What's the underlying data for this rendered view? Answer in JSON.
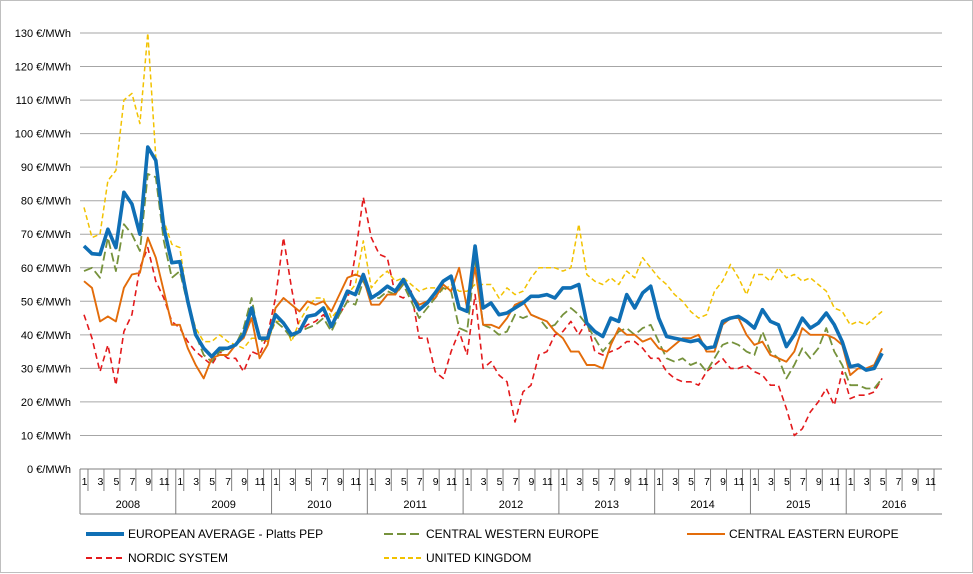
{
  "chart_data": {
    "type": "line",
    "y_unit": "€/MWh",
    "ylim": [
      0,
      130
    ],
    "y_ticks": [
      0,
      10,
      20,
      30,
      40,
      50,
      60,
      70,
      80,
      90,
      100,
      110,
      120,
      130
    ],
    "y_tick_labels": [
      "0 €/MWh",
      "10 €/MWh",
      "20 €/MWh",
      "30 €/MWh",
      "40 €/MWh",
      "50 €/MWh",
      "60 €/MWh",
      "70 €/MWh",
      "80 €/MWh",
      "90 €/MWh",
      "100 €/MWh",
      "110 €/MWh",
      "120 €/MWh",
      "130 €/MWh"
    ],
    "grid": "horizontal",
    "legend_position": "bottom",
    "x_month_labels": [
      "1",
      "3",
      "5",
      "7",
      "9",
      "11"
    ],
    "years": [
      "2008",
      "2009",
      "2010",
      "2011",
      "2012",
      "2013",
      "2014",
      "2015",
      "2016"
    ],
    "x_start": "2008-01",
    "x_end": "2016-06",
    "series": [
      {
        "name": "EUROPEAN AVERAGE - Platts PEP",
        "color": "#0f6fb5",
        "dash": "solid",
        "values": [
          66.5,
          64.2,
          64.0,
          71.5,
          66.0,
          82.5,
          79.0,
          70.0,
          96.0,
          92.0,
          72.0,
          61.5,
          61.8,
          50.0,
          40.0,
          36.0,
          33.5,
          36.0,
          36.0,
          37.0,
          40.0,
          48.0,
          39.0,
          39.0,
          46.0,
          43.5,
          40.0,
          41.0,
          45.5,
          46.0,
          48.0,
          42.5,
          47.5,
          53.0,
          52.0,
          58.0,
          51.0,
          52.5,
          54.5,
          53.0,
          56.5,
          52.0,
          47.5,
          49.5,
          52.5,
          56.0,
          57.5,
          48.0,
          47.0,
          66.5,
          48.0,
          49.5,
          46.0,
          46.5,
          48.0,
          49.5,
          51.5,
          51.5,
          52.0,
          51.0,
          54.0,
          54.0,
          55.0,
          43.5,
          41.0,
          39.5,
          45.0,
          44.0,
          52.0,
          48.0,
          52.5,
          54.5,
          45.0,
          39.5,
          39.0,
          38.5,
          38.0,
          38.5,
          36.0,
          36.5,
          44.0,
          45.0,
          45.5,
          44.0,
          42.0,
          47.5,
          44.0,
          43.0,
          36.5,
          40.0,
          45.0,
          42.0,
          43.5,
          46.5,
          43.0,
          38.0,
          30.5,
          31.0,
          29.5,
          30.0,
          34.5
        ]
      },
      {
        "name": "CENTRAL WESTERN EUROPE",
        "color": "#76923c",
        "dash": "long-dash",
        "values": [
          59.0,
          60.0,
          57.0,
          69.0,
          59.0,
          73.0,
          70.0,
          65.0,
          88.0,
          87.0,
          68.0,
          57.0,
          59.0,
          49.0,
          40.0,
          34.0,
          32.0,
          35.0,
          36.0,
          37.0,
          42.0,
          51.0,
          38.0,
          39.0,
          44.0,
          42.0,
          39.0,
          41.0,
          42.0,
          43.0,
          45.0,
          41.0,
          46.0,
          50.0,
          49.0,
          56.0,
          51.0,
          51.0,
          53.0,
          52.0,
          55.0,
          50.0,
          45.0,
          48.0,
          51.0,
          54.0,
          53.0,
          42.0,
          41.0,
          62.0,
          43.0,
          42.0,
          40.0,
          41.0,
          46.0,
          45.0,
          46.0,
          45.0,
          42.0,
          43.0,
          46.0,
          48.0,
          46.0,
          43.0,
          39.0,
          35.0,
          38.0,
          41.0,
          42.0,
          40.0,
          42.0,
          43.0,
          38.0,
          33.0,
          32.0,
          33.0,
          31.0,
          32.0,
          29.0,
          33.0,
          37.0,
          38.0,
          37.0,
          35.0,
          34.0,
          41.0,
          35.0,
          33.0,
          27.0,
          31.0,
          36.0,
          33.0,
          36.0,
          42.0,
          35.0,
          31.0,
          25.0,
          25.0,
          24.0,
          24.0,
          27.0
        ]
      },
      {
        "name": "CENTRAL EASTERN EUROPE",
        "color": "#e36c0a",
        "dash": "solid",
        "values": [
          56.0,
          54.0,
          44.0,
          45.5,
          44.0,
          54.0,
          58.0,
          58.5,
          69.0,
          63.0,
          53.0,
          43.0,
          43.0,
          36.0,
          31.0,
          27.0,
          33.0,
          34.0,
          34.0,
          37.0,
          39.0,
          45.0,
          33.0,
          37.0,
          48.0,
          51.0,
          49.0,
          47.0,
          50.0,
          49.0,
          50.0,
          47.0,
          52.0,
          57.0,
          58.0,
          57.0,
          49.0,
          49.0,
          52.0,
          52.0,
          56.0,
          52.0,
          49.0,
          50.0,
          51.0,
          55.0,
          53.0,
          60.0,
          48.0,
          60.0,
          43.0,
          43.0,
          42.0,
          45.0,
          49.0,
          50.0,
          46.0,
          45.0,
          44.0,
          41.0,
          39.0,
          35.0,
          35.0,
          31.0,
          31.0,
          30.0,
          37.0,
          42.0,
          40.0,
          40.0,
          38.0,
          39.0,
          36.0,
          35.0,
          37.0,
          39.0,
          39.0,
          40.0,
          35.0,
          35.0,
          43.0,
          45.0,
          45.0,
          40.0,
          37.0,
          38.0,
          34.0,
          33.0,
          32.0,
          35.0,
          42.0,
          40.0,
          40.0,
          40.0,
          39.0,
          37.0,
          28.0,
          30.0,
          30.0,
          31.0,
          36.0
        ]
      },
      {
        "name": "NORDIC SYSTEM",
        "color": "#e31a1c",
        "dash": "short-dash",
        "values": [
          46.0,
          39.0,
          29.0,
          37.0,
          25.0,
          41.0,
          46.0,
          60.0,
          66.0,
          56.0,
          51.0,
          44.0,
          42.0,
          38.0,
          35.0,
          33.0,
          31.0,
          35.0,
          33.0,
          33.0,
          29.0,
          35.0,
          34.0,
          40.0,
          51.0,
          69.0,
          54.0,
          41.0,
          43.0,
          44.0,
          46.0,
          43.0,
          46.0,
          50.0,
          64.0,
          81.0,
          69.0,
          64.0,
          63.0,
          52.0,
          51.0,
          53.0,
          39.0,
          39.0,
          29.0,
          27.0,
          35.0,
          41.0,
          34.0,
          52.0,
          30.0,
          32.0,
          28.0,
          26.0,
          14.0,
          23.0,
          25.0,
          34.0,
          35.0,
          40.0,
          41.0,
          44.0,
          40.0,
          44.0,
          35.0,
          34.0,
          35.0,
          36.0,
          38.0,
          38.0,
          36.0,
          33.0,
          33.0,
          29.0,
          27.0,
          26.0,
          26.0,
          25.0,
          29.0,
          31.0,
          33.0,
          30.0,
          30.0,
          31.0,
          29.0,
          28.0,
          25.0,
          25.0,
          18.0,
          10.0,
          12.0,
          17.0,
          20.0,
          24.0,
          19.0,
          29.0,
          21.0,
          22.0,
          22.0,
          23.0,
          27.0
        ]
      },
      {
        "name": "UNITED KINGDOM",
        "color": "#f2c200",
        "dash": "dash",
        "values": [
          78.0,
          69.0,
          70.0,
          86.0,
          89.0,
          110.0,
          112.0,
          103.0,
          130.0,
          93.0,
          74.0,
          67.0,
          66.0,
          50.0,
          42.0,
          38.0,
          38.0,
          40.0,
          38.0,
          37.0,
          36.0,
          39.0,
          39.0,
          38.0,
          44.0,
          44.0,
          38.0,
          44.0,
          48.0,
          51.0,
          51.0,
          45.0,
          48.0,
          52.0,
          55.0,
          68.0,
          54.0,
          57.0,
          59.0,
          56.0,
          57.0,
          55.0,
          53.0,
          54.0,
          54.0,
          53.0,
          55.0,
          53.0,
          53.0,
          55.0,
          55.0,
          55.0,
          51.0,
          54.0,
          52.0,
          53.0,
          57.0,
          60.0,
          60.0,
          60.0,
          59.0,
          60.0,
          73.0,
          58.0,
          56.0,
          55.0,
          57.0,
          55.0,
          59.0,
          57.0,
          63.0,
          60.0,
          57.0,
          55.0,
          52.0,
          50.0,
          47.0,
          45.0,
          46.0,
          53.0,
          56.0,
          61.0,
          57.0,
          52.0,
          58.0,
          58.0,
          56.0,
          60.0,
          57.0,
          58.0,
          56.0,
          57.0,
          55.0,
          53.0,
          48.0,
          47.0,
          43.0,
          44.0,
          43.0,
          45.0,
          47.0
        ]
      }
    ]
  }
}
